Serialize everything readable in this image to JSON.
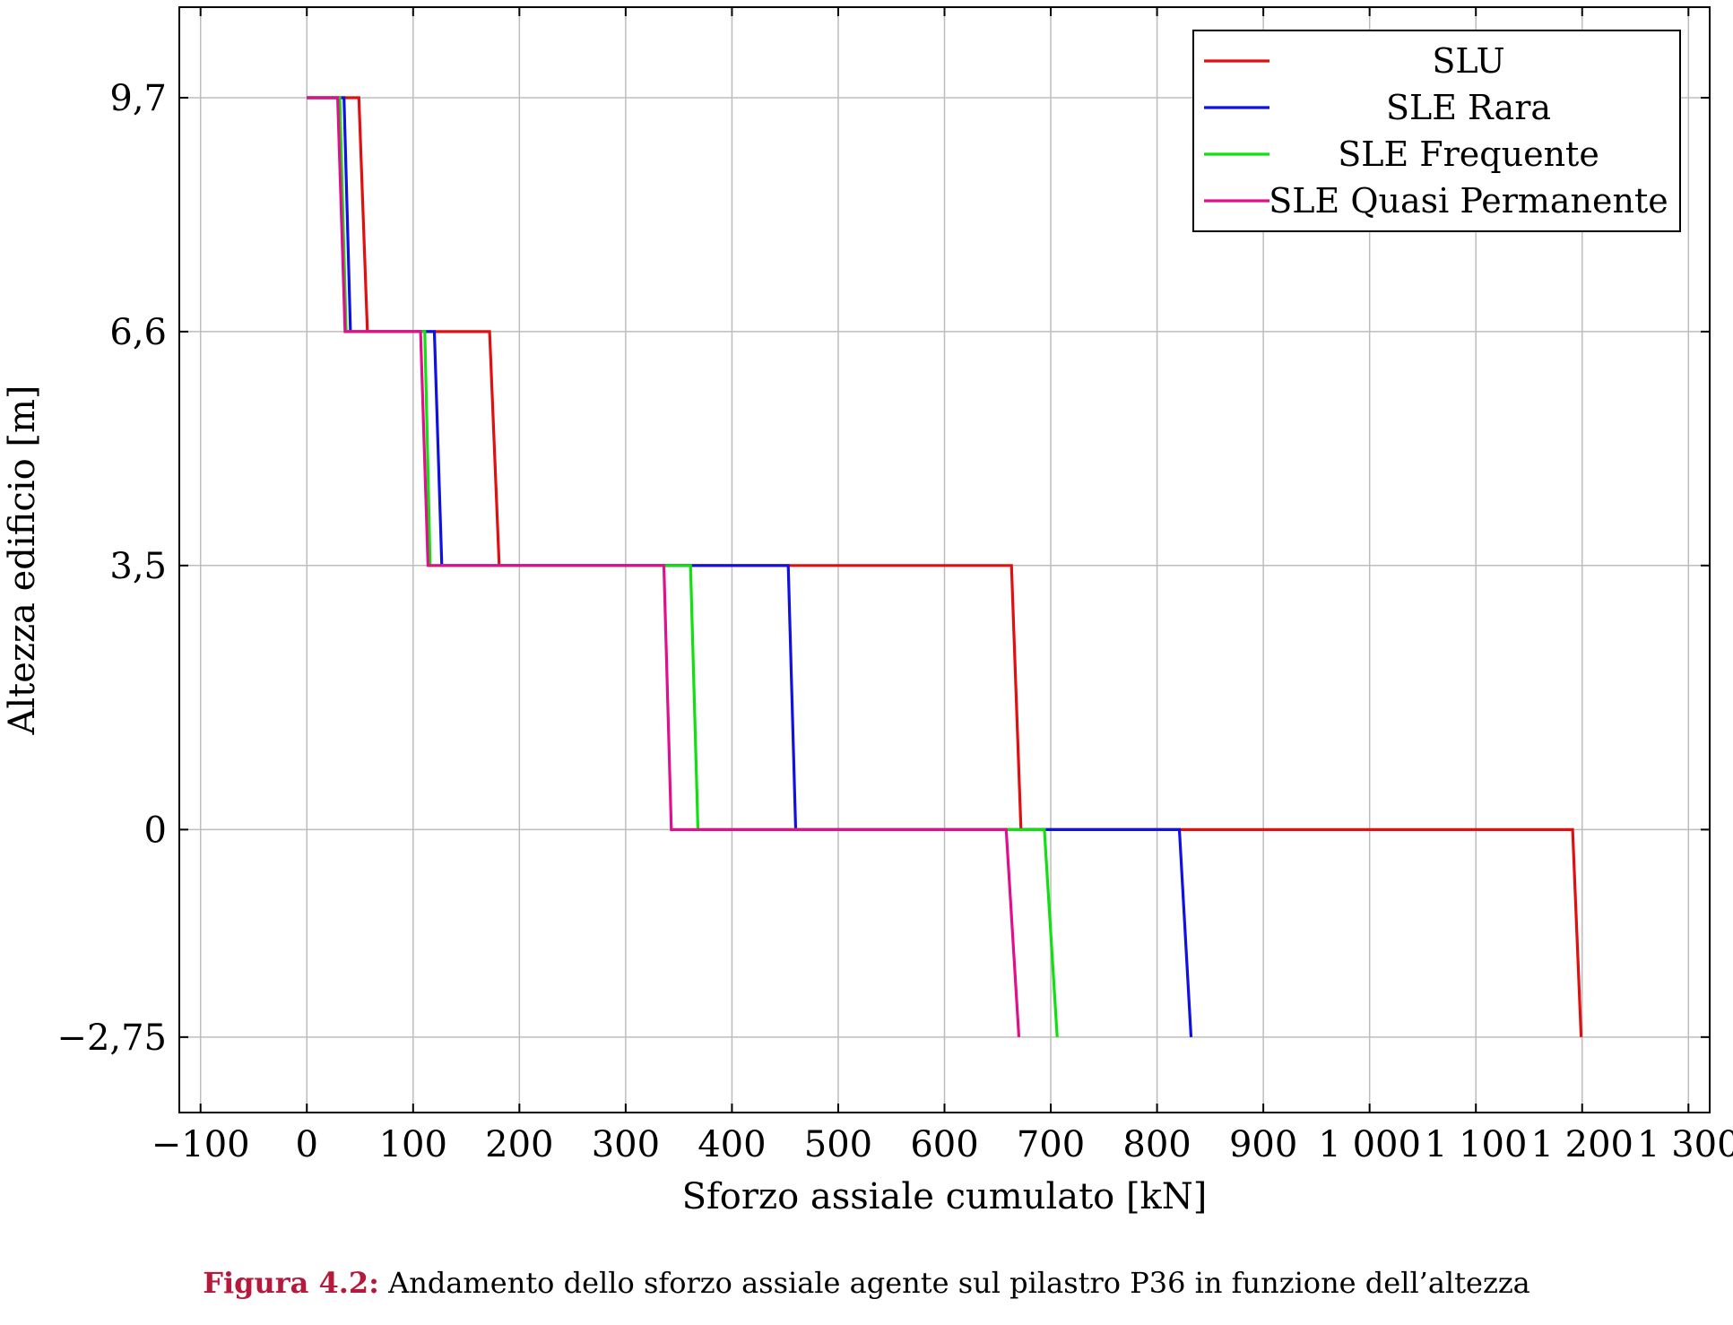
{
  "chart_data": {
    "type": "line",
    "xlabel": "Sforzo assiale cumulato [kN]",
    "ylabel": "Altezza edificio [m]",
    "xlim": [
      -120,
      1320
    ],
    "ylim": [
      -3.75,
      10.9
    ],
    "xticks": [
      -100,
      0,
      100,
      200,
      300,
      400,
      500,
      600,
      700,
      800,
      900,
      1000,
      1100,
      1200,
      1300
    ],
    "xtick_labels": [
      "−100",
      "0",
      "100",
      "200",
      "300",
      "400",
      "500",
      "600",
      "700",
      "800",
      "900",
      "1 000",
      "1 100",
      "1 200",
      "1 300"
    ],
    "yticks": [
      -2.75,
      0,
      3.5,
      6.6,
      9.7
    ],
    "ytick_labels": [
      "−2,75",
      "0",
      "3,5",
      "6,6",
      "9,7"
    ],
    "grid": true,
    "legend_position": "top-right",
    "series": [
      {
        "name": "SLU",
        "color": "#e01010",
        "x": [
          0,
          49,
          57,
          172,
          181,
          663,
          672,
          1191,
          1199
        ],
        "y": [
          9.7,
          9.7,
          6.6,
          6.6,
          3.5,
          3.5,
          0,
          0,
          -2.75
        ]
      },
      {
        "name": "SLE Rara",
        "color": "#1010e0",
        "x": [
          0,
          35,
          41,
          120,
          127,
          453,
          460,
          821,
          832
        ],
        "y": [
          9.7,
          9.7,
          6.6,
          6.6,
          3.5,
          3.5,
          0,
          0,
          -2.75
        ]
      },
      {
        "name": "SLE Frequente",
        "color": "#10e010",
        "x": [
          0,
          31,
          37,
          111,
          116,
          361,
          368,
          694,
          706
        ],
        "y": [
          9.7,
          9.7,
          6.6,
          6.6,
          3.5,
          3.5,
          0,
          0,
          -2.75
        ]
      },
      {
        "name": "SLE Quasi Permanente",
        "color": "#e0108c",
        "x": [
          0,
          29,
          36,
          107,
          114,
          336,
          343,
          658,
          670
        ],
        "y": [
          9.7,
          9.7,
          6.6,
          6.6,
          3.5,
          3.5,
          0,
          0,
          -2.75
        ]
      }
    ]
  },
  "caption": {
    "label": "Figura 4.2:",
    "text": "Andamento dello sforzo assiale agente sul pilastro P36 in funzione dell’altezza"
  }
}
